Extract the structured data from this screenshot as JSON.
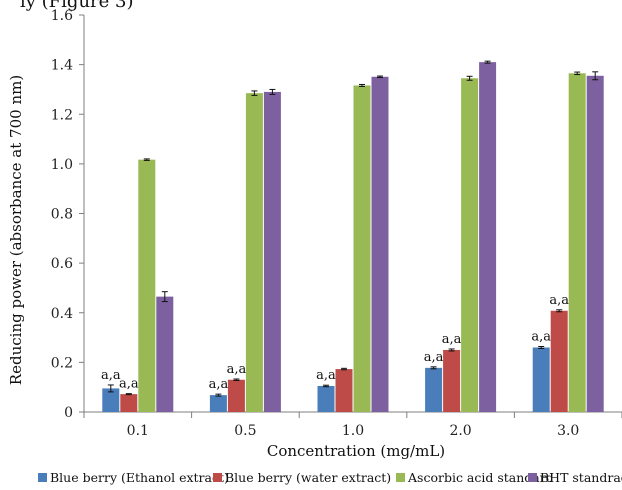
{
  "header_fragment": "ly (Figure 3)",
  "chart_data": {
    "type": "bar",
    "title": "",
    "xlabel": "Concentration (mg/mL)",
    "ylabel": "Reducing power (absorbance at 700 nm)",
    "categories": [
      "0.1",
      "0.5",
      "1.0",
      "2.0",
      "3.0"
    ],
    "ylim": [
      0,
      1.6
    ],
    "yticks": [
      "0",
      "0.2",
      "0.4",
      "0.6",
      "0.8",
      "1.0",
      "1.2",
      "1.4",
      "1.6"
    ],
    "grid": false,
    "legend_position": "bottom",
    "series": [
      {
        "name": "Blue berry (Ethanol extract)",
        "color": "#4a7ebb",
        "values": [
          0.095,
          0.068,
          0.105,
          0.178,
          0.26
        ],
        "errors": [
          0.014,
          0.004,
          0.003,
          0.004,
          0.004
        ],
        "labels": [
          "a,a",
          "a,a",
          "a,a",
          "a,a",
          "a,a"
        ]
      },
      {
        "name": "Blue berry (water extract)",
        "color": "#be4b48",
        "values": [
          0.072,
          0.13,
          0.173,
          0.25,
          0.408
        ],
        "errors": [
          0.002,
          0.003,
          0.003,
          0.004,
          0.004
        ],
        "labels": [
          "a,a",
          "a,a",
          "",
          "a,a",
          "a,a"
        ]
      },
      {
        "name": "Ascorbic acid standard",
        "color": "#98b954",
        "values": [
          1.017,
          1.285,
          1.316,
          1.345,
          1.365
        ],
        "errors": [
          0.003,
          0.009,
          0.004,
          0.008,
          0.005
        ],
        "labels": [
          "",
          "",
          "",
          "",
          ""
        ]
      },
      {
        "name": "BHT standrad",
        "color": "#7d60a0",
        "values": [
          0.465,
          1.29,
          1.351,
          1.41,
          1.355
        ],
        "errors": [
          0.02,
          0.01,
          0.003,
          0.004,
          0.016
        ],
        "labels": [
          "",
          "",
          "",
          "",
          ""
        ]
      }
    ]
  }
}
